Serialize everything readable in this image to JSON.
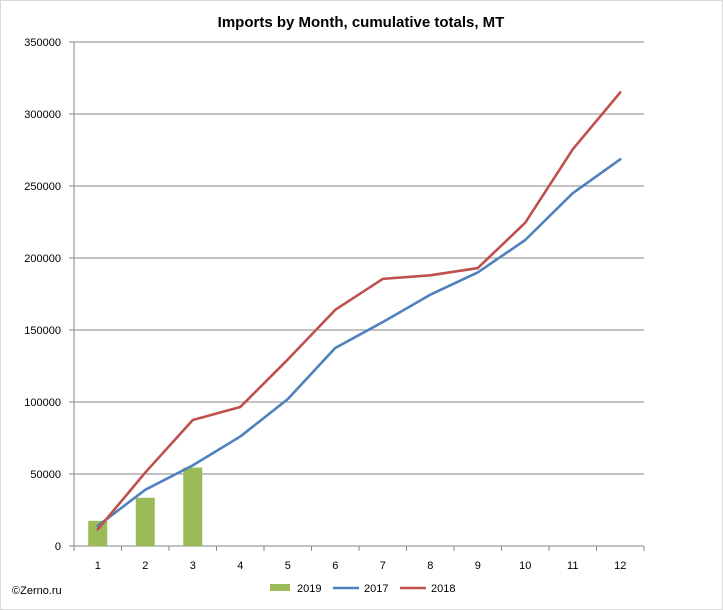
{
  "chart_data": {
    "type": "bar",
    "title": "Imports by Month, cumulative totals, MT",
    "xlabel": "",
    "ylabel": "",
    "categories": [
      "1",
      "2",
      "3",
      "4",
      "5",
      "6",
      "7",
      "8",
      "9",
      "10",
      "11",
      "12"
    ],
    "ylim": [
      0,
      350000
    ],
    "yticks": [
      "0",
      "50000",
      "100000",
      "150000",
      "200000",
      "250000",
      "300000",
      "350000"
    ],
    "grid": true,
    "legend_position": "bottom",
    "series": [
      {
        "name": "2019",
        "kind": "bar",
        "color": "#9bbb59",
        "values": [
          17500,
          33500,
          54500,
          null,
          null,
          null,
          null,
          null,
          null,
          null,
          null,
          null
        ]
      },
      {
        "name": "2017",
        "kind": "line",
        "color": "#4f81bd",
        "values": [
          14000,
          39000,
          56000,
          76000,
          102000,
          137500,
          155500,
          174500,
          190000,
          212500,
          245000,
          268500
        ]
      },
      {
        "name": "2018",
        "kind": "line",
        "color": "#c0504d",
        "values": [
          11500,
          51000,
          87500,
          96500,
          129500,
          164000,
          185500,
          188000,
          193000,
          224500,
          275500,
          315000
        ]
      }
    ],
    "credit": "©Zerno.ru"
  }
}
